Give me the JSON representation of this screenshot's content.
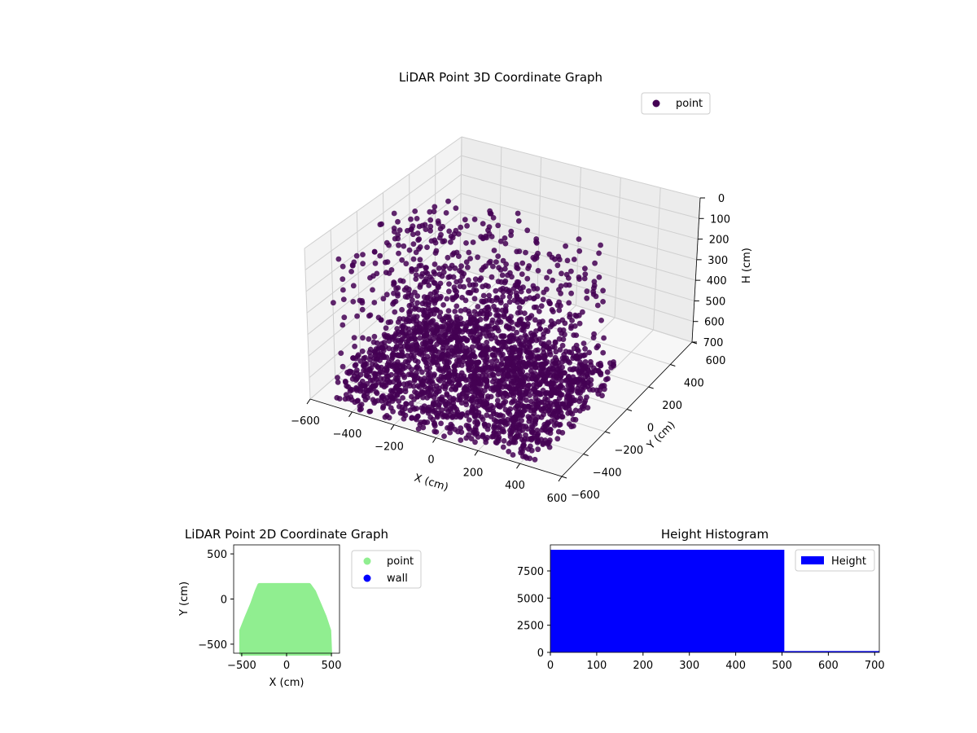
{
  "chart_data": [
    {
      "type": "scatter",
      "subtype": "3d",
      "title": "LiDAR Point 3D Coordinate Graph",
      "xlabel": "X (cm)",
      "ylabel": "Y (cm)",
      "zlabel": "H (cm)",
      "xticks": [
        "−600",
        "−400",
        "−200",
        "0",
        "200",
        "400",
        "600"
      ],
      "yticks": [
        "−600",
        "−400",
        "−200",
        "0",
        "200",
        "400",
        "600"
      ],
      "zticks": [
        "0",
        "100",
        "200",
        "300",
        "400",
        "500",
        "600",
        "700"
      ],
      "xlim": [
        -600,
        600
      ],
      "ylim": [
        -600,
        600
      ],
      "zlim": [
        700,
        0
      ],
      "grid": true,
      "legend": {
        "placement": "top-right",
        "entries": [
          {
            "label": "point",
            "color": "#440154"
          }
        ]
      },
      "series": [
        {
          "name": "point",
          "color": "#440154",
          "description_of_extent": "points span X about -500 to 500, Y about -600 to 150, H about 0 to 700"
        }
      ]
    },
    {
      "type": "scatter",
      "title": "LiDAR Point 2D Coordinate Graph",
      "xlabel": "X (cm)",
      "ylabel": "Y (cm)",
      "xticks": [
        "−500",
        "0",
        "500"
      ],
      "yticks": [
        "−500",
        "0",
        "500"
      ],
      "xlim": [
        -590,
        590
      ],
      "ylim": [
        -600,
        600
      ],
      "legend": {
        "placement": "outside-right",
        "entries": [
          {
            "label": "point",
            "color": "#90ee90"
          },
          {
            "label": "wall",
            "color": "#0000ff"
          }
        ]
      },
      "series": [
        {
          "name": "point",
          "color": "#90ee90",
          "outline": [
            [
              -500,
              -600
            ],
            [
              -500,
              -350
            ],
            [
              -440,
              -200
            ],
            [
              -380,
              -60
            ],
            [
              -330,
              80
            ],
            [
              -300,
              150
            ],
            [
              250,
              150
            ],
            [
              300,
              80
            ],
            [
              360,
              -60
            ],
            [
              420,
              -200
            ],
            [
              470,
              -350
            ],
            [
              480,
              -600
            ]
          ]
        },
        {
          "name": "wall",
          "color": "#0000ff",
          "points": []
        }
      ]
    },
    {
      "type": "bar",
      "subtype": "histogram",
      "title": "Height Histogram",
      "xticks": [
        "0",
        "100",
        "200",
        "300",
        "400",
        "500",
        "600",
        "700"
      ],
      "yticks": [
        "0",
        "2500",
        "5000",
        "7500"
      ],
      "xlim": [
        0,
        710
      ],
      "ylim": [
        0,
        9900
      ],
      "legend": {
        "placement": "top-right",
        "entries": [
          {
            "label": "Height",
            "color": "#0000ff"
          }
        ]
      },
      "bins": [
        {
          "x0": 0,
          "x1": 505,
          "count": 9450
        },
        {
          "x0": 505,
          "x1": 710,
          "count": 120
        }
      ],
      "color": "#0000ff"
    }
  ]
}
